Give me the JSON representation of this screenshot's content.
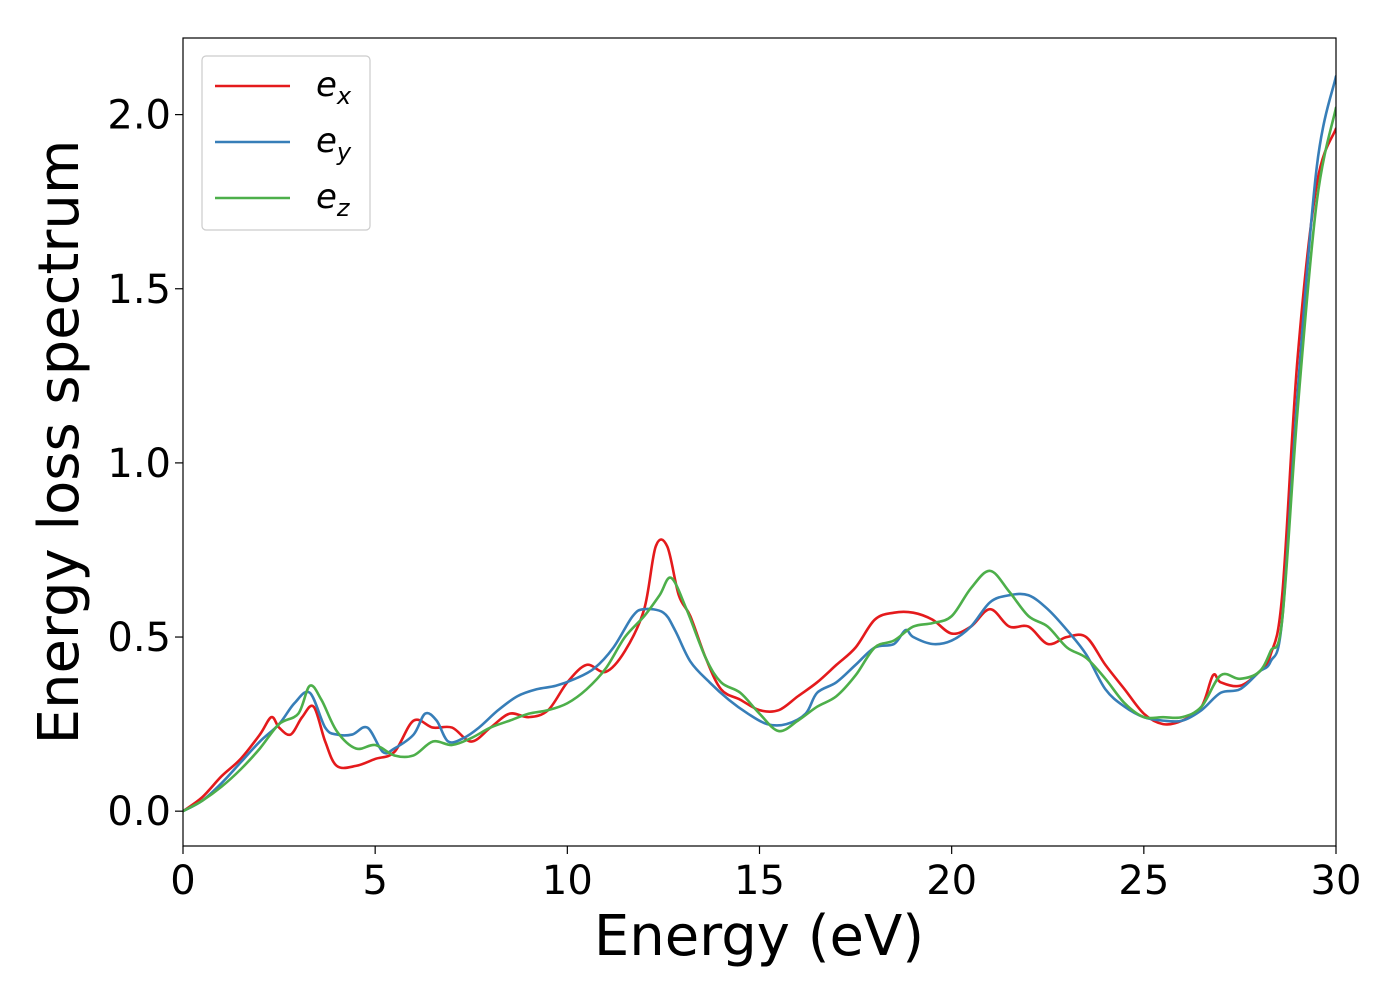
{
  "chart_data": {
    "type": "line",
    "xlabel": "Energy (eV)",
    "ylabel": "Energy loss spectrum",
    "xlim": [
      0,
      30
    ],
    "ylim": [
      -0.1,
      2.22
    ],
    "xticks": [
      0,
      5,
      10,
      15,
      20,
      25,
      30
    ],
    "xtick_labels": [
      "0",
      "5",
      "10",
      "15",
      "20",
      "25",
      "30"
    ],
    "yticks": [
      0.0,
      0.5,
      1.0,
      1.5,
      2.0
    ],
    "ytick_labels": [
      "0.0",
      "0.5",
      "1.0",
      "1.5",
      "2.0"
    ],
    "grid": false,
    "legend_position": "top-left",
    "series": [
      {
        "name": "e_x",
        "base": "e",
        "sub": "x",
        "color": "#e41a1c",
        "x": [
          0,
          0.5,
          1,
          1.5,
          2,
          2.3,
          2.5,
          2.8,
          3.1,
          3.4,
          3.7,
          4,
          4.5,
          5,
          5.5,
          6,
          6.5,
          7,
          7.5,
          8,
          8.5,
          9,
          9.5,
          10,
          10.5,
          11,
          11.5,
          12,
          12.3,
          12.6,
          12.9,
          13.2,
          13.6,
          14,
          14.5,
          15,
          15.5,
          16,
          16.5,
          17,
          17.5,
          18,
          18.5,
          19,
          19.5,
          20,
          20.5,
          21,
          21.5,
          22,
          22.5,
          23,
          23.5,
          24,
          24.5,
          25,
          25.5,
          26,
          26.5,
          26.8,
          27,
          27.5,
          28,
          28.3,
          28.6,
          29,
          29.5,
          30
        ],
        "y": [
          0,
          0.04,
          0.1,
          0.15,
          0.22,
          0.27,
          0.24,
          0.22,
          0.27,
          0.3,
          0.2,
          0.13,
          0.13,
          0.15,
          0.17,
          0.26,
          0.24,
          0.24,
          0.2,
          0.24,
          0.28,
          0.27,
          0.29,
          0.37,
          0.42,
          0.4,
          0.46,
          0.58,
          0.76,
          0.76,
          0.62,
          0.56,
          0.44,
          0.35,
          0.32,
          0.29,
          0.29,
          0.33,
          0.37,
          0.42,
          0.47,
          0.55,
          0.57,
          0.57,
          0.55,
          0.51,
          0.53,
          0.58,
          0.53,
          0.53,
          0.48,
          0.5,
          0.5,
          0.42,
          0.35,
          0.28,
          0.25,
          0.26,
          0.3,
          0.39,
          0.37,
          0.36,
          0.4,
          0.45,
          0.62,
          1.3,
          1.8,
          1.96
        ]
      },
      {
        "name": "e_y",
        "base": "e",
        "sub": "y",
        "color": "#377eb8",
        "x": [
          0,
          0.5,
          1,
          1.5,
          2,
          2.5,
          2.9,
          3.3,
          3.7,
          4,
          4.4,
          4.8,
          5.2,
          5.5,
          6,
          6.3,
          6.6,
          6.9,
          7.3,
          7.7,
          8.2,
          8.7,
          9.2,
          9.7,
          10.2,
          10.7,
          11.2,
          11.7,
          12,
          12.5,
          12.8,
          13.2,
          13.7,
          14.2,
          14.7,
          15.2,
          15.7,
          16.2,
          16.5,
          17,
          17.5,
          18,
          18.5,
          18.8,
          19,
          19.5,
          20,
          20.5,
          21,
          21.5,
          22,
          22.5,
          23,
          23.5,
          24,
          24.5,
          25,
          25.5,
          26,
          26.5,
          27,
          27.5,
          28,
          28.3,
          28.6,
          29,
          29.5,
          30
        ],
        "y": [
          0,
          0.03,
          0.08,
          0.14,
          0.2,
          0.25,
          0.31,
          0.34,
          0.24,
          0.22,
          0.22,
          0.24,
          0.17,
          0.18,
          0.22,
          0.28,
          0.26,
          0.2,
          0.21,
          0.24,
          0.29,
          0.33,
          0.35,
          0.36,
          0.38,
          0.41,
          0.47,
          0.56,
          0.58,
          0.57,
          0.52,
          0.43,
          0.37,
          0.32,
          0.28,
          0.25,
          0.25,
          0.28,
          0.34,
          0.37,
          0.42,
          0.47,
          0.48,
          0.52,
          0.5,
          0.48,
          0.49,
          0.53,
          0.6,
          0.62,
          0.62,
          0.58,
          0.52,
          0.45,
          0.35,
          0.3,
          0.27,
          0.26,
          0.26,
          0.29,
          0.34,
          0.35,
          0.4,
          0.43,
          0.55,
          1.2,
          1.85,
          2.11
        ]
      },
      {
        "name": "e_z",
        "base": "e",
        "sub": "z",
        "color": "#4daf4a",
        "x": [
          0,
          0.5,
          1,
          1.5,
          2,
          2.5,
          3,
          3.3,
          3.6,
          4,
          4.5,
          5,
          5.5,
          6,
          6.5,
          7,
          7.5,
          8,
          8.5,
          9,
          9.5,
          10,
          10.5,
          11,
          11.5,
          12,
          12.4,
          12.7,
          13.1,
          13.6,
          14,
          14.5,
          15,
          15.5,
          16,
          16.5,
          17,
          17.5,
          18,
          18.5,
          19,
          19.5,
          20,
          20.5,
          21,
          21.5,
          22,
          22.5,
          23,
          23.5,
          24,
          24.5,
          25,
          25.5,
          26,
          26.5,
          27,
          27.5,
          28,
          28.3,
          28.6,
          29,
          29.5,
          30
        ],
        "y": [
          0,
          0.03,
          0.07,
          0.12,
          0.18,
          0.25,
          0.28,
          0.36,
          0.32,
          0.23,
          0.18,
          0.19,
          0.16,
          0.16,
          0.2,
          0.19,
          0.21,
          0.24,
          0.26,
          0.28,
          0.29,
          0.31,
          0.35,
          0.41,
          0.5,
          0.56,
          0.62,
          0.67,
          0.58,
          0.44,
          0.37,
          0.34,
          0.28,
          0.23,
          0.26,
          0.3,
          0.33,
          0.39,
          0.47,
          0.49,
          0.53,
          0.54,
          0.56,
          0.64,
          0.69,
          0.63,
          0.56,
          0.53,
          0.47,
          0.44,
          0.38,
          0.31,
          0.27,
          0.27,
          0.27,
          0.3,
          0.39,
          0.38,
          0.4,
          0.46,
          0.55,
          1.15,
          1.75,
          2.02
        ]
      }
    ]
  }
}
